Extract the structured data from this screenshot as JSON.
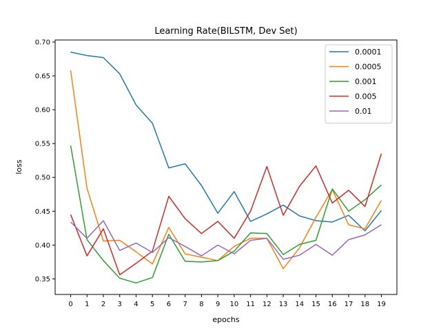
{
  "chart_data": {
    "type": "line",
    "title": "Learning Rate(BILSTM, Dev Set)",
    "xlabel": "epochs",
    "ylabel": "loss",
    "x": [
      0,
      1,
      2,
      3,
      4,
      5,
      6,
      7,
      8,
      9,
      10,
      11,
      12,
      13,
      14,
      15,
      16,
      17,
      18,
      19
    ],
    "xlim": [
      -0.95,
      19.95
    ],
    "ylim": [
      0.327,
      0.703
    ],
    "yticks": [
      0.35,
      0.4,
      0.45,
      0.5,
      0.55,
      0.6,
      0.65,
      0.7
    ],
    "ytick_labels": [
      "0.35",
      "0.40",
      "0.45",
      "0.50",
      "0.55",
      "0.60",
      "0.65",
      "0.70"
    ],
    "grid": false,
    "legend_position": "top-right",
    "series": [
      {
        "name": "0.0001",
        "color": "#1f77b4",
        "values": [
          0.685,
          0.68,
          0.677,
          0.653,
          0.607,
          0.58,
          0.514,
          0.52,
          0.488,
          0.447,
          0.479,
          0.435,
          0.446,
          0.459,
          0.443,
          0.436,
          0.434,
          0.444,
          0.421,
          0.451
        ]
      },
      {
        "name": "0.0005",
        "color": "#ff7f0e",
        "values": [
          0.658,
          0.484,
          0.406,
          0.407,
          0.39,
          0.372,
          0.426,
          0.387,
          0.382,
          0.377,
          0.398,
          0.41,
          0.41,
          0.365,
          0.396,
          0.441,
          0.482,
          0.43,
          0.424,
          0.466
        ]
      },
      {
        "name": "0.001",
        "color": "#2ca02c",
        "values": [
          0.547,
          0.408,
          0.377,
          0.351,
          0.344,
          0.352,
          0.416,
          0.376,
          0.375,
          0.377,
          0.391,
          0.418,
          0.417,
          0.386,
          0.401,
          0.407,
          0.483,
          0.45,
          0.467,
          0.489
        ]
      },
      {
        "name": "0.005",
        "color": "#d62728",
        "values": [
          0.445,
          0.384,
          0.424,
          0.356,
          0.373,
          0.391,
          0.472,
          0.439,
          0.417,
          0.435,
          0.41,
          0.45,
          0.516,
          0.444,
          0.487,
          0.517,
          0.462,
          0.481,
          0.457,
          0.535
        ]
      },
      {
        "name": "0.01",
        "color": "#9467bd",
        "values": [
          0.434,
          0.41,
          0.436,
          0.392,
          0.403,
          0.389,
          0.411,
          0.398,
          0.384,
          0.4,
          0.387,
          0.407,
          0.41,
          0.379,
          0.385,
          0.401,
          0.385,
          0.408,
          0.415,
          0.43
        ]
      }
    ]
  }
}
